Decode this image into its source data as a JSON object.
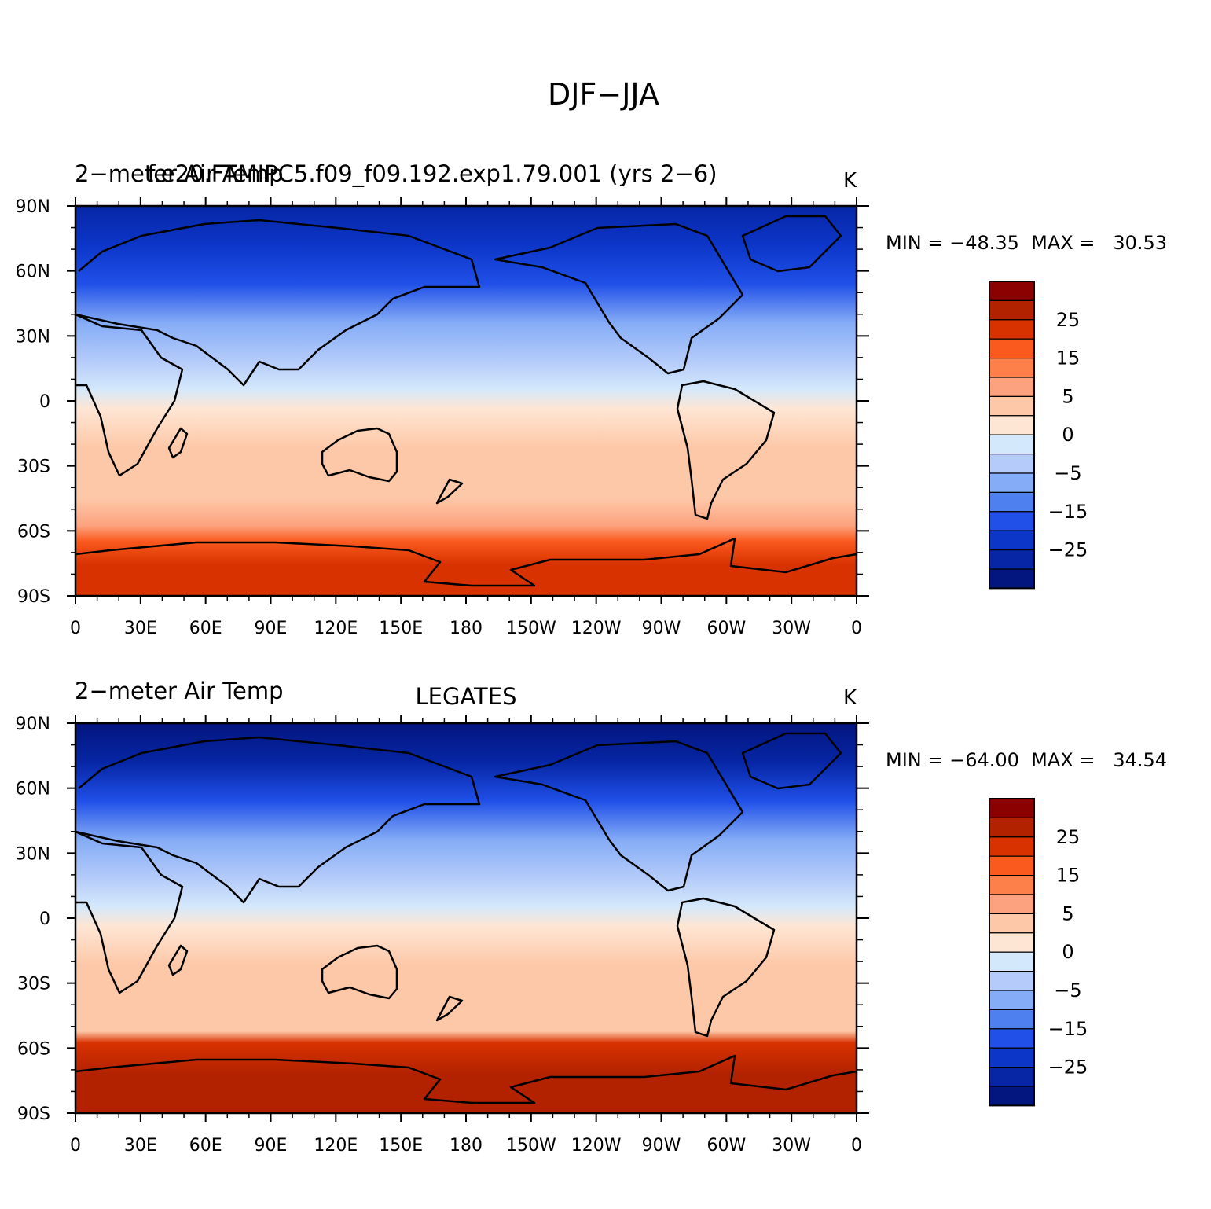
{
  "figure_title": "DJF−JJA",
  "chart_data": [
    {
      "type": "heatmap",
      "name": "model-panel",
      "title_left": "2−meter Air Temp",
      "title_center": "f.e20.FAMIPC5.f09_f09.192.exp1.79.001 (yrs 2−6)",
      "units": "K",
      "stats_text": "MIN = −48.35  MAX =   30.53",
      "x_ticks": [
        "0",
        "30E",
        "60E",
        "90E",
        "120E",
        "150E",
        "180",
        "150W",
        "120W",
        "90W",
        "60W",
        "30W",
        "0"
      ],
      "y_ticks": [
        "90N",
        "60N",
        "30N",
        "0",
        "30S",
        "60S",
        "90S"
      ],
      "xlim": [
        0,
        360
      ],
      "ylim": [
        -90,
        90
      ]
    },
    {
      "type": "heatmap",
      "name": "obs-panel",
      "title_left": "2−meter Air Temp",
      "title_center": "LEGATES",
      "units": "K",
      "stats_text": "MIN = −64.00  MAX =   34.54",
      "x_ticks": [
        "0",
        "30E",
        "60E",
        "90E",
        "120E",
        "150E",
        "180",
        "150W",
        "120W",
        "90W",
        "60W",
        "30W",
        "0"
      ],
      "y_ticks": [
        "90N",
        "60N",
        "30N",
        "0",
        "30S",
        "60S",
        "90S"
      ],
      "xlim": [
        0,
        360
      ],
      "ylim": [
        -90,
        90
      ]
    }
  ],
  "colorbar": {
    "labels": [
      "25",
      "15",
      "5",
      "0",
      "−5",
      "−15",
      "−25"
    ],
    "colors": [
      "#8b0000",
      "#b22200",
      "#d83200",
      "#fa5a1e",
      "#fd7f4a",
      "#fda27e",
      "#fdc8a8",
      "#fee6d4",
      "#d4e8fb",
      "#b5ccfa",
      "#85acf6",
      "#4f80f0",
      "#2050e8",
      "#0c36c8",
      "#0626a5",
      "#03157e"
    ]
  }
}
